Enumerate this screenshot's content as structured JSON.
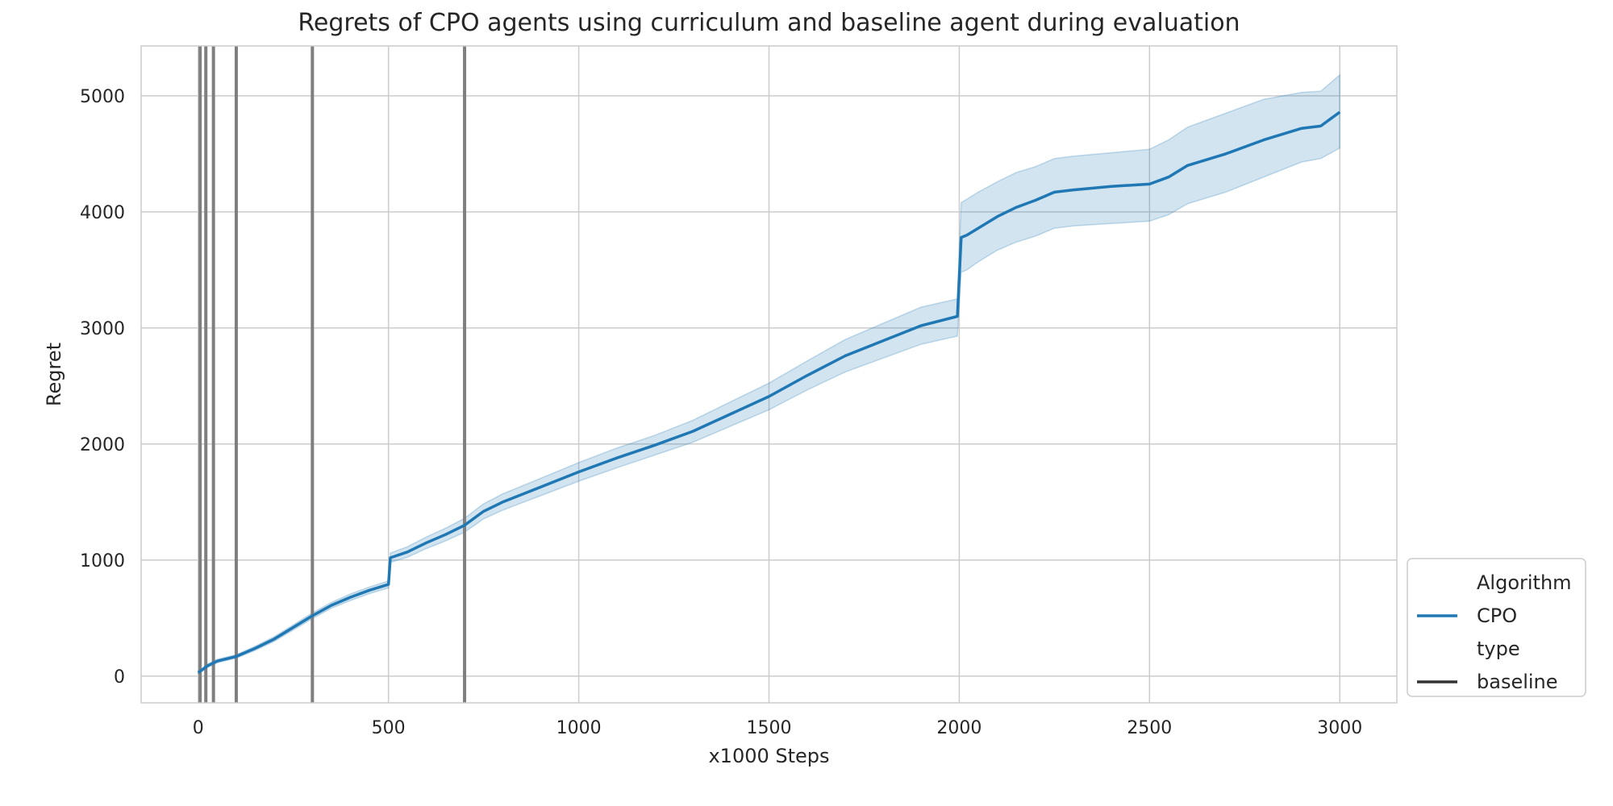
{
  "chart_data": {
    "type": "line",
    "title": "Regrets of CPO agents using curriculum and baseline agent during evaluation",
    "xlabel": "x1000 Steps",
    "ylabel": "Regret",
    "xlim": [
      -150,
      3150
    ],
    "ylim": [
      -230,
      5430
    ],
    "xticks": [
      0,
      500,
      1000,
      1500,
      2000,
      2500,
      3000
    ],
    "yticks": [
      0,
      1000,
      2000,
      3000,
      4000,
      5000
    ],
    "grid": true,
    "legend": {
      "placement": "outside-bottom-right",
      "entries": [
        {
          "label": "Algorithm",
          "kind": "header"
        },
        {
          "label": "CPO",
          "kind": "line",
          "color": "#1f77b4"
        },
        {
          "label": "type",
          "kind": "header"
        },
        {
          "label": "baseline",
          "kind": "line",
          "color": "#333333"
        }
      ]
    },
    "series": [
      {
        "name": "CPO",
        "color": "#1f77b4",
        "x": [
          0,
          25,
          50,
          100,
          150,
          200,
          250,
          300,
          350,
          400,
          450,
          500,
          505,
          550,
          600,
          650,
          700,
          750,
          800,
          900,
          1000,
          1100,
          1200,
          1300,
          1400,
          1500,
          1600,
          1700,
          1800,
          1900,
          1995,
          2005,
          2020,
          2050,
          2100,
          2150,
          2200,
          2250,
          2300,
          2400,
          2500,
          2550,
          2600,
          2700,
          2800,
          2900,
          2950,
          3000
        ],
        "y": [
          30,
          90,
          130,
          170,
          240,
          320,
          420,
          520,
          610,
          680,
          740,
          790,
          1020,
          1070,
          1150,
          1220,
          1300,
          1420,
          1500,
          1630,
          1760,
          1880,
          1990,
          2110,
          2260,
          2410,
          2590,
          2760,
          2890,
          3020,
          3100,
          3780,
          3800,
          3860,
          3960,
          4040,
          4100,
          4170,
          4190,
          4220,
          4240,
          4300,
          4400,
          4500,
          4620,
          4720,
          4740,
          4860
        ],
        "lower": [
          20,
          75,
          115,
          155,
          222,
          300,
          398,
          496,
          585,
          652,
          711,
          760,
          980,
          1025,
          1100,
          1165,
          1240,
          1355,
          1430,
          1555,
          1680,
          1795,
          1905,
          2015,
          2155,
          2295,
          2465,
          2620,
          2740,
          2860,
          2930,
          3480,
          3500,
          3570,
          3670,
          3740,
          3790,
          3860,
          3880,
          3900,
          3920,
          3975,
          4070,
          4170,
          4300,
          4430,
          4460,
          4550
        ],
        "upper": [
          40,
          105,
          145,
          185,
          258,
          340,
          442,
          544,
          635,
          708,
          769,
          820,
          1060,
          1115,
          1200,
          1275,
          1360,
          1485,
          1570,
          1705,
          1840,
          1965,
          2075,
          2205,
          2365,
          2525,
          2715,
          2900,
          3040,
          3180,
          3250,
          4080,
          4110,
          4170,
          4260,
          4340,
          4390,
          4460,
          4480,
          4510,
          4540,
          4620,
          4730,
          4850,
          4970,
          5030,
          5040,
          5180
        ]
      }
    ],
    "baseline_lines": {
      "name": "baseline",
      "color": "#7f7f7f",
      "x": [
        5,
        20,
        40,
        100,
        300,
        700
      ]
    }
  }
}
